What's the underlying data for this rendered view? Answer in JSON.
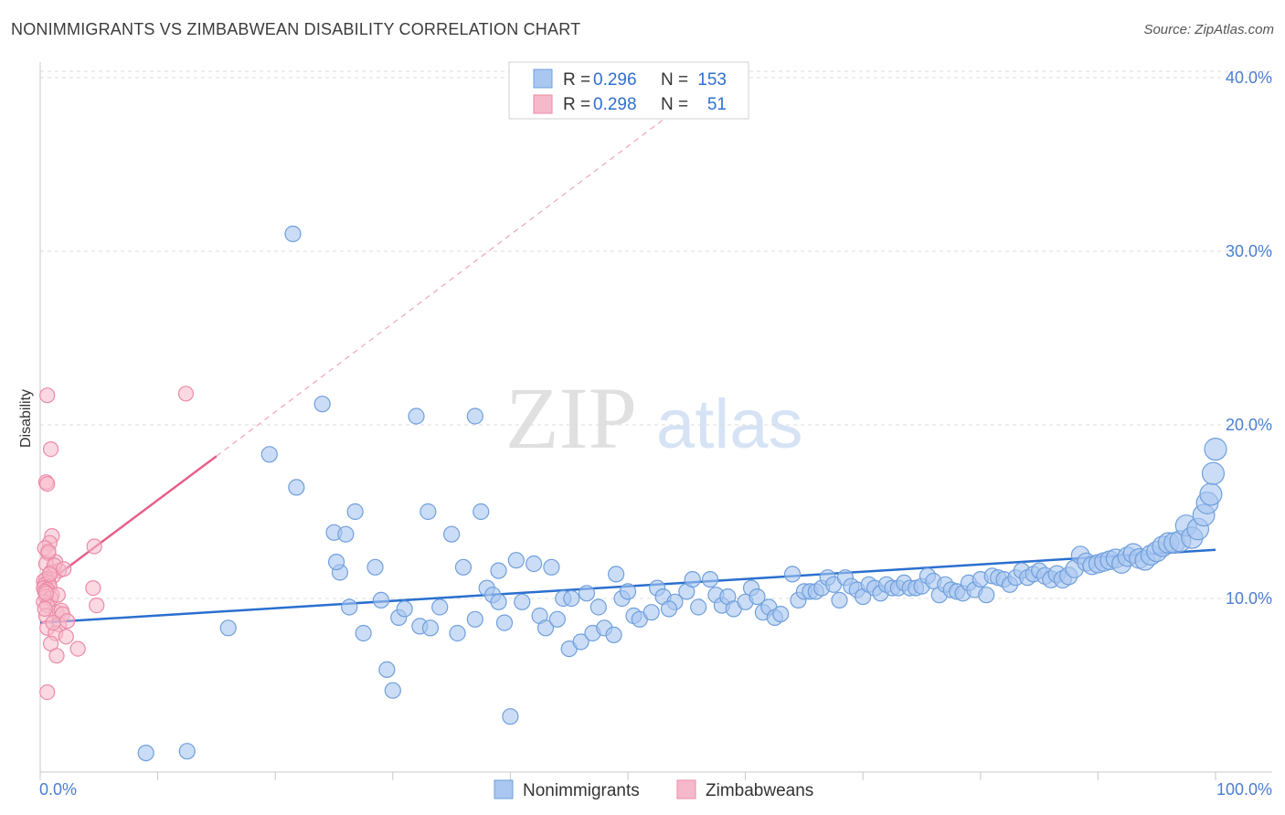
{
  "header": {
    "title": "NONIMMIGRANTS VS ZIMBABWEAN DISABILITY CORRELATION CHART",
    "source": "Source: ZipAtlas.com"
  },
  "watermark": {
    "zip": "ZIP",
    "atlas": "atlas"
  },
  "colors": {
    "blue_fill": "#a9c7f0",
    "blue_stroke": "#6f9fdc",
    "blue_line": "#2a6fcf",
    "pink_fill": "#f6b9cb",
    "pink_stroke": "#ec8aa6",
    "pink_line": "#e8608a",
    "grid": "#dddddd",
    "tick_text": "#4a7fd0"
  },
  "legend": {
    "rows": [
      {
        "r_label": "R =",
        "r_value": "0.296",
        "n_label": "N =",
        "n_value": "153"
      },
      {
        "r_label": "R =",
        "r_value": "0.298",
        "n_label": "N =",
        "n_value": "51"
      }
    ]
  },
  "bottom_legend": [
    "Nonimmigrants",
    "Zimbabweans"
  ],
  "chart_data": {
    "type": "scatter",
    "title": "NONIMMIGRANTS VS ZIMBABWEAN DISABILITY CORRELATION CHART",
    "xlabel": "",
    "ylabel": "Disability",
    "xlim": [
      0,
      100
    ],
    "ylim": [
      0,
      41
    ],
    "x_tick_labels": [
      "0.0%",
      "100.0%"
    ],
    "y_ticks": [
      10,
      20,
      30,
      40
    ],
    "y_tick_labels": [
      "10.0%",
      "20.0%",
      "30.0%",
      "40.0%"
    ],
    "grid": "horizontal dashed",
    "legend_position": "top-center",
    "series": [
      {
        "name": "Nonimmigrants",
        "trend": {
          "x0": 0,
          "y0": 8.6,
          "x1": 100,
          "y1": 12.8
        },
        "points": [
          [
            9,
            1.1
          ],
          [
            12.5,
            1.2
          ],
          [
            16,
            8.3
          ],
          [
            19.5,
            18.3
          ],
          [
            21.5,
            31
          ],
          [
            21.8,
            16.4
          ],
          [
            24,
            21.2
          ],
          [
            25,
            13.8
          ],
          [
            25.5,
            11.5
          ],
          [
            26,
            13.7
          ],
          [
            26.3,
            9.5
          ],
          [
            26.8,
            15
          ],
          [
            27.5,
            8
          ],
          [
            28.5,
            11.8
          ],
          [
            29,
            9.9
          ],
          [
            29.5,
            5.9
          ],
          [
            30,
            4.7
          ],
          [
            30.5,
            8.9
          ],
          [
            31,
            9.4
          ],
          [
            32,
            20.5
          ],
          [
            32.3,
            8.4
          ],
          [
            33.2,
            8.3
          ],
          [
            34,
            9.5
          ],
          [
            35,
            13.7
          ],
          [
            35.5,
            8
          ],
          [
            36,
            11.8
          ],
          [
            37,
            8.8
          ],
          [
            37.5,
            15
          ],
          [
            38,
            10.6
          ],
          [
            38.5,
            10.2
          ],
          [
            39,
            9.8
          ],
          [
            39.5,
            8.6
          ],
          [
            40,
            3.2
          ],
          [
            40.5,
            12.2
          ],
          [
            41,
            9.8
          ],
          [
            42,
            12
          ],
          [
            42.5,
            9
          ],
          [
            43,
            8.3
          ],
          [
            44,
            8.8
          ],
          [
            44.5,
            10
          ],
          [
            45,
            7.1
          ],
          [
            45.2,
            10
          ],
          [
            46,
            7.5
          ],
          [
            47,
            8
          ],
          [
            47.5,
            9.5
          ],
          [
            48,
            8.3
          ],
          [
            49,
            11.4
          ],
          [
            49.5,
            10
          ],
          [
            50,
            10.4
          ],
          [
            50.5,
            9
          ],
          [
            51,
            8.8
          ],
          [
            52,
            9.2
          ],
          [
            52.5,
            10.6
          ],
          [
            53,
            10.1
          ],
          [
            54,
            9.8
          ],
          [
            55,
            10.4
          ],
          [
            55.5,
            11.1
          ],
          [
            56,
            9.5
          ],
          [
            57,
            11.1
          ],
          [
            57.5,
            10.2
          ],
          [
            58,
            9.6
          ],
          [
            58.5,
            10.1
          ],
          [
            59,
            9.4
          ],
          [
            60,
            9.8
          ],
          [
            60.5,
            10.6
          ],
          [
            61,
            10.1
          ],
          [
            61.5,
            9.2
          ],
          [
            62,
            9.5
          ],
          [
            62.5,
            8.9
          ],
          [
            63,
            9.1
          ],
          [
            64,
            11.4
          ],
          [
            64.5,
            9.9
          ],
          [
            65,
            10.4
          ],
          [
            65.5,
            10.4
          ],
          [
            66,
            10.4
          ],
          [
            66.5,
            10.6
          ],
          [
            67,
            11.2
          ],
          [
            67.5,
            10.8
          ],
          [
            68,
            9.9
          ],
          [
            68.5,
            11.2
          ],
          [
            69,
            10.7
          ],
          [
            69.5,
            10.5
          ],
          [
            70,
            10.1
          ],
          [
            70.5,
            10.8
          ],
          [
            71,
            10.6
          ],
          [
            71.5,
            10.3
          ],
          [
            72,
            10.8
          ],
          [
            72.5,
            10.6
          ],
          [
            73,
            10.6
          ],
          [
            73.5,
            10.9
          ],
          [
            74,
            10.6
          ],
          [
            74.5,
            10.6
          ],
          [
            75,
            10.7
          ],
          [
            75.5,
            11.3
          ],
          [
            76,
            11
          ],
          [
            76.5,
            10.2
          ],
          [
            77,
            10.8
          ],
          [
            77.5,
            10.5
          ],
          [
            78,
            10.4
          ],
          [
            78.5,
            10.3
          ],
          [
            79,
            10.9
          ],
          [
            79.5,
            10.5
          ],
          [
            80,
            11.1
          ],
          [
            80.5,
            10.2
          ],
          [
            81,
            11.3
          ],
          [
            81.5,
            11.2
          ],
          [
            82,
            11.1
          ],
          [
            82.5,
            10.8
          ],
          [
            83,
            11.2
          ],
          [
            83.5,
            11.6
          ],
          [
            84,
            11.2
          ],
          [
            84.5,
            11.4
          ],
          [
            85,
            11.6
          ],
          [
            85.5,
            11.3
          ],
          [
            86,
            11.1
          ],
          [
            86.5,
            11.4
          ],
          [
            87,
            11.1
          ],
          [
            87.5,
            11.3
          ],
          [
            88,
            11.7
          ],
          [
            88.5,
            12.5
          ],
          [
            89,
            12.1
          ],
          [
            89.5,
            11.9
          ],
          [
            90,
            12
          ],
          [
            90.5,
            12.1
          ],
          [
            91,
            12.2
          ],
          [
            91.5,
            12.3
          ],
          [
            92,
            12
          ],
          [
            92.5,
            12.4
          ],
          [
            93,
            12.6
          ],
          [
            93.5,
            12.3
          ],
          [
            94,
            12.2
          ],
          [
            94.5,
            12.5
          ],
          [
            95,
            12.7
          ],
          [
            95.5,
            13
          ],
          [
            96,
            13.2
          ],
          [
            96.5,
            13.2
          ],
          [
            97,
            13.3
          ],
          [
            97.5,
            14.2
          ],
          [
            98,
            13.5
          ],
          [
            98.5,
            14
          ],
          [
            99,
            14.8
          ],
          [
            99.3,
            15.5
          ],
          [
            99.6,
            16
          ],
          [
            99.8,
            17.2
          ],
          [
            100,
            18.6
          ],
          [
            37,
            20.5
          ],
          [
            25.2,
            12.1
          ],
          [
            33,
            15
          ],
          [
            39,
            11.6
          ],
          [
            43.5,
            11.8
          ],
          [
            46.5,
            10.3
          ],
          [
            48.8,
            7.9
          ],
          [
            53.5,
            9.4
          ]
        ]
      },
      {
        "name": "Zimbabweans",
        "trend": {
          "x0": 0,
          "y0": 10.6,
          "x1": 15,
          "y1": 18.2,
          "dash_to_x": 55,
          "dash_to_y": 38.6
        },
        "points": [
          [
            0.6,
            21.7
          ],
          [
            0.9,
            18.6
          ],
          [
            0.5,
            16.7
          ],
          [
            0.6,
            16.6
          ],
          [
            1,
            13.6
          ],
          [
            0.8,
            13.2
          ],
          [
            0.4,
            12.9
          ],
          [
            0.7,
            12.6
          ],
          [
            1.3,
            12.1
          ],
          [
            0.5,
            12
          ],
          [
            1.6,
            11.6
          ],
          [
            0.9,
            11.5
          ],
          [
            1.1,
            11.3
          ],
          [
            0.5,
            11.1
          ],
          [
            0.3,
            11
          ],
          [
            0.7,
            10.9
          ],
          [
            0.4,
            10.8
          ],
          [
            0.8,
            10.7
          ],
          [
            0.3,
            10.6
          ],
          [
            0.6,
            10.5
          ],
          [
            0.4,
            10.4
          ],
          [
            1,
            10.2
          ],
          [
            0.5,
            10.1
          ],
          [
            0.9,
            10
          ],
          [
            0.3,
            9.8
          ],
          [
            0.6,
            9.6
          ],
          [
            1.4,
            9.2
          ],
          [
            0.5,
            9
          ],
          [
            1.6,
            8.5
          ],
          [
            0.6,
            8.3
          ],
          [
            1.3,
            8
          ],
          [
            2.2,
            7.8
          ],
          [
            0.9,
            7.4
          ],
          [
            1.4,
            6.7
          ],
          [
            0.6,
            4.6
          ],
          [
            12.4,
            21.8
          ],
          [
            4.6,
            13
          ],
          [
            4.5,
            10.6
          ],
          [
            4.8,
            9.6
          ],
          [
            3.2,
            7.1
          ],
          [
            1.8,
            9.3
          ],
          [
            1.2,
            11.9
          ],
          [
            0.7,
            12.7
          ],
          [
            1.5,
            10.2
          ],
          [
            0.4,
            9.4
          ],
          [
            2,
            11.7
          ],
          [
            0.8,
            11.4
          ],
          [
            1.9,
            9.1
          ],
          [
            1.1,
            8.6
          ],
          [
            0.5,
            10.3
          ],
          [
            2.3,
            8.7
          ]
        ]
      }
    ]
  }
}
